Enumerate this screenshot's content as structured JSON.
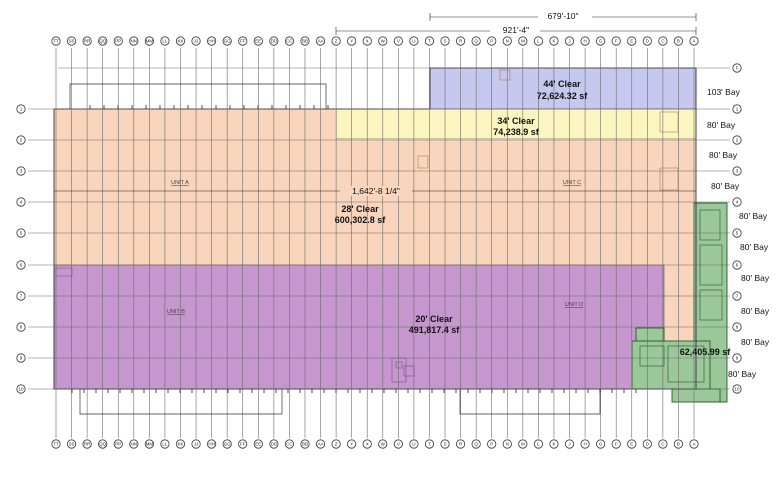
{
  "zones": {
    "zone_44": {
      "clear": "44' Clear",
      "area": "72,624.32 sf",
      "color": "#c7c8f0"
    },
    "zone_34": {
      "clear": "34' Clear",
      "area": "74,238.9 sf",
      "color": "#fbf6bf"
    },
    "zone_28": {
      "clear": "28' Clear",
      "area": "600,302.8 sf",
      "color": "#f9d5bd"
    },
    "zone_20": {
      "clear": "20' Clear",
      "area": "491,817.4 sf",
      "color": "#c697cf"
    },
    "zone_office": {
      "area": "62,405.99 sf",
      "color": "#9cc79a"
    }
  },
  "units": {
    "unit_a": "UNIT A",
    "unit_b": "UNIT B",
    "unit_c": "UNIT C",
    "unit_d": "UNIT D"
  },
  "dimensions": {
    "dim_679": "679'-10\"",
    "dim_921": "921'-4\"",
    "dim_1642": "1,642'-8 1/4\""
  },
  "bays": [
    {
      "id": "bay-103",
      "label": "103' Bay"
    },
    {
      "id": "bay-80-1",
      "label": "80' Bay"
    },
    {
      "id": "bay-80-2",
      "label": "80' Bay"
    },
    {
      "id": "bay-80-3",
      "label": "80' Bay"
    },
    {
      "id": "bay-80-4",
      "label": "80' Bay"
    },
    {
      "id": "bay-80-5",
      "label": "80' Bay"
    },
    {
      "id": "bay-80-6",
      "label": "80' Bay"
    },
    {
      "id": "bay-80-7",
      "label": "80' Bay"
    },
    {
      "id": "bay-80-8",
      "label": "80' Bay"
    },
    {
      "id": "bay-80-9",
      "label": "80' Bay"
    }
  ],
  "column_labels": [
    "TT",
    "SS",
    "RR",
    "QQ",
    "PP",
    "NN",
    "MM",
    "LL",
    "KK",
    "JJ",
    "HH",
    "GG",
    "FF",
    "EE",
    "DD",
    "CC",
    "BB",
    "AA",
    "Z",
    "Y",
    "X",
    "W",
    "V",
    "U",
    "T",
    "S",
    "R",
    "Q",
    "P",
    "N",
    "M",
    "L",
    "K",
    "J",
    "H",
    "G",
    "F",
    "E",
    "D",
    "C",
    "B",
    "A"
  ],
  "row_labels_left": [
    "1",
    "2",
    "3",
    "4",
    "5",
    "6",
    "7",
    "8",
    "9",
    "10"
  ],
  "row_labels_right": [
    "F",
    "1",
    "2",
    "3",
    "4",
    "5",
    "6",
    "7",
    "8",
    "9",
    "10"
  ]
}
